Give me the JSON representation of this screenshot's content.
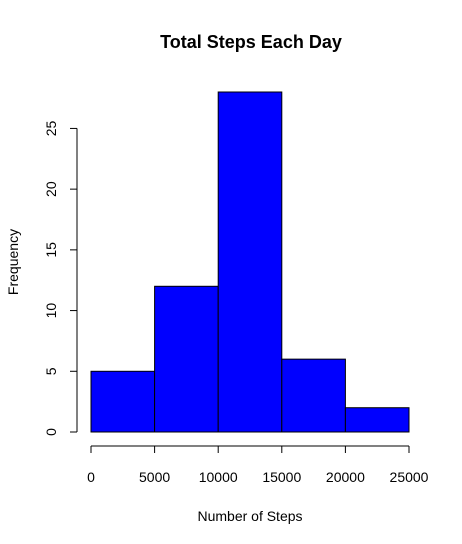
{
  "chart_data": {
    "type": "bar",
    "title": "Total Steps Each Day",
    "xlabel": "Number of Steps",
    "ylabel": "Frequency",
    "bins": [
      {
        "start": 0,
        "end": 5000,
        "count": 5
      },
      {
        "start": 5000,
        "end": 10000,
        "count": 12
      },
      {
        "start": 10000,
        "end": 15000,
        "count": 28
      },
      {
        "start": 15000,
        "end": 20000,
        "count": 6
      },
      {
        "start": 20000,
        "end": 25000,
        "count": 2
      }
    ],
    "xlim": [
      0,
      25000
    ],
    "ylim": [
      0,
      28
    ],
    "x_ticks": [
      0,
      5000,
      10000,
      15000,
      20000,
      25000
    ],
    "y_ticks": [
      0,
      5,
      10,
      15,
      20,
      25
    ],
    "bar_color": "#0000ff",
    "grid": false
  }
}
